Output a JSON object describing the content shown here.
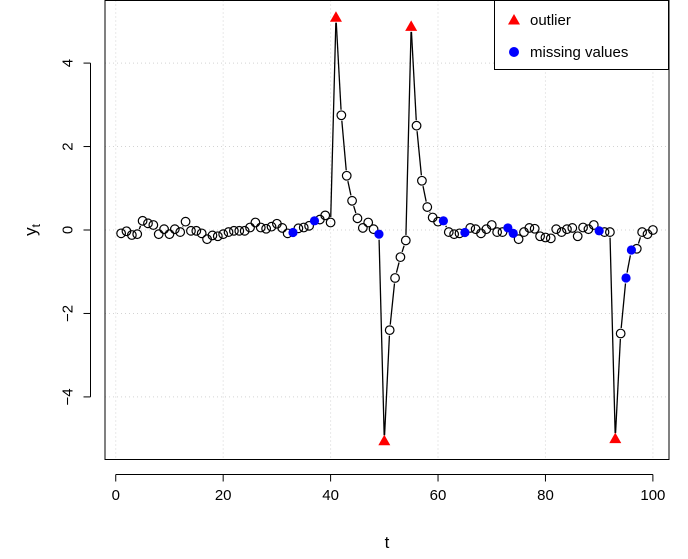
{
  "chart_data": {
    "type": "line",
    "title": "",
    "xlabel": "t",
    "ylabel": "y",
    "ylabel_subscript": "t",
    "xlim": [
      -2,
      103
    ],
    "ylim": [
      -5.5,
      5.5
    ],
    "x_ticks": [
      0,
      20,
      40,
      60,
      80,
      100
    ],
    "y_ticks": [
      -4,
      -2,
      0,
      2,
      4
    ],
    "x_tick_labels": [
      "0",
      "20",
      "40",
      "60",
      "80",
      "100"
    ],
    "y_tick_labels": [
      "−4",
      "−2",
      "0",
      "2",
      "4"
    ],
    "grid": true,
    "legend_position": "top-right",
    "colors": {
      "line": "#000000",
      "outlier": "#ff0000",
      "missing": "#0000ff",
      "observed": "#000000"
    },
    "legend": [
      {
        "label": "outlier",
        "marker": "triangle",
        "color": "#ff0000"
      },
      {
        "label": "missing values",
        "marker": "circle-filled",
        "color": "#0000ff"
      }
    ],
    "series": [
      {
        "name": "",
        "x": [
          1,
          2,
          3,
          4,
          5,
          6,
          7,
          8,
          9,
          10,
          11,
          12,
          13,
          14,
          15,
          16,
          17,
          18,
          19,
          20,
          21,
          22,
          23,
          24,
          25,
          26,
          27,
          28,
          29,
          30,
          31,
          32,
          33,
          34,
          35,
          36,
          37,
          38,
          39,
          40,
          41,
          42,
          43,
          44,
          45,
          46,
          47,
          48,
          49,
          50,
          51,
          52,
          53,
          54,
          55,
          56,
          57,
          58,
          59,
          60,
          61,
          62,
          63,
          64,
          65,
          66,
          67,
          68,
          69,
          70,
          71,
          72,
          73,
          74,
          75,
          76,
          77,
          78,
          79,
          80,
          81,
          82,
          83,
          84,
          85,
          86,
          87,
          88,
          89,
          90,
          91,
          92,
          93,
          94,
          95,
          96,
          97,
          98,
          99,
          100
        ],
        "y": [
          -0.08,
          -0.03,
          -0.12,
          -0.1,
          0.22,
          0.16,
          0.12,
          -0.1,
          0.02,
          -0.1,
          0.02,
          -0.05,
          0.2,
          -0.02,
          -0.02,
          -0.08,
          -0.22,
          -0.13,
          -0.15,
          -0.1,
          -0.05,
          -0.02,
          -0.02,
          -0.02,
          0.06,
          0.18,
          0.06,
          0.03,
          0.08,
          0.15,
          0.05,
          -0.08,
          -0.06,
          0.04,
          0.06,
          0.1,
          0.22,
          0.25,
          0.35,
          0.18,
          5.1,
          2.75,
          1.3,
          0.7,
          0.28,
          0.05,
          0.18,
          0.02,
          -0.1,
          -5.05,
          -2.4,
          -1.15,
          -0.65,
          -0.25,
          4.88,
          2.5,
          1.18,
          0.55,
          0.3,
          0.2,
          0.22,
          -0.05,
          -0.1,
          -0.08,
          -0.06,
          0.05,
          0.02,
          -0.08,
          0.02,
          0.12,
          -0.05,
          -0.05,
          0.05,
          -0.08,
          -0.22,
          -0.05,
          0.05,
          0.03,
          -0.15,
          -0.18,
          -0.2,
          0.02,
          -0.05,
          0.02,
          0.05,
          -0.15,
          0.06,
          0.02,
          0.12,
          -0.02,
          -0.05,
          -0.05,
          -5.0,
          -2.48,
          -1.15,
          -0.48,
          -0.45,
          -0.05,
          -0.1,
          0.0
        ],
        "outliers": [
          41,
          50,
          55,
          93
        ],
        "missing": [
          33,
          37,
          49,
          61,
          65,
          73,
          74,
          90,
          95,
          96
        ]
      }
    ]
  }
}
